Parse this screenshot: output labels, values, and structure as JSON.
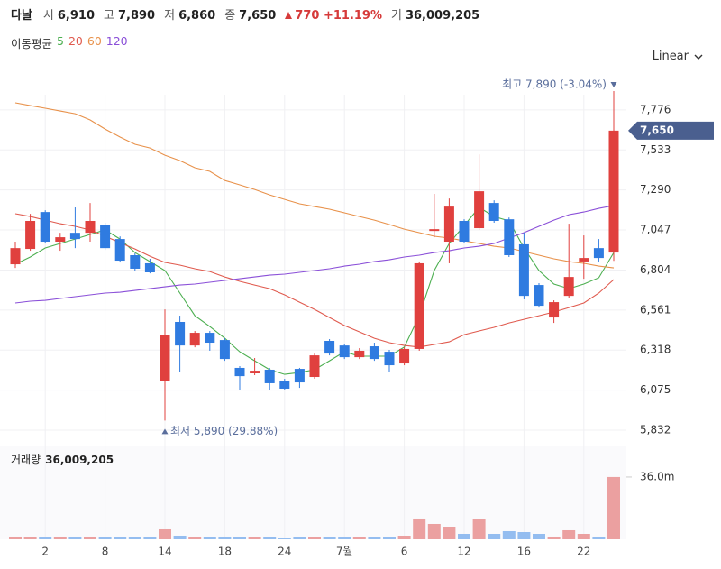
{
  "header": {
    "name": "다날",
    "items": [
      {
        "label": "시",
        "value": "6,910"
      },
      {
        "label": "고",
        "value": "7,890"
      },
      {
        "label": "저",
        "value": "6,860"
      },
      {
        "label": "종",
        "value": "7,650"
      }
    ],
    "change": "770 +11.19%",
    "volume_label": "거",
    "volume_value": "36,009,205"
  },
  "scale_menu": "Linear",
  "chart_data": {
    "type": "candlestick",
    "legend_title": "이동평균",
    "categories": [
      null,
      null,
      "2",
      null,
      null,
      null,
      "8",
      null,
      null,
      null,
      "14",
      null,
      null,
      null,
      "18",
      null,
      null,
      null,
      "24",
      null,
      null,
      null,
      "7월",
      null,
      null,
      null,
      "6",
      null,
      null,
      null,
      "12",
      null,
      null,
      null,
      "16",
      null,
      null,
      null,
      "22",
      null,
      null
    ],
    "open": [
      6839,
      6932,
      7156,
      6976,
      7030,
      7030,
      7080,
      6992,
      6894,
      6845,
      6128,
      6489,
      6346,
      6423,
      6379,
      6210,
      6177,
      6199,
      6133,
      6204,
      6155,
      6374,
      6346,
      6275,
      6341,
      6308,
      6237,
      6325,
      7041,
      6976,
      7102,
      7058,
      7211,
      7112,
      6960,
      6713,
      6516,
      6647,
      6856,
      6937,
      6910
    ],
    "high": [
      6976,
      7145,
      7167,
      7030,
      7184,
      7211,
      7091,
      7008,
      6905,
      6872,
      6565,
      6527,
      6434,
      6434,
      6390,
      6221,
      6270,
      6210,
      6144,
      6210,
      6297,
      6385,
      6352,
      6330,
      6363,
      6319,
      6335,
      6856,
      7266,
      7238,
      7112,
      7506,
      7227,
      7123,
      7030,
      6724,
      6620,
      7085,
      7014,
      6992,
      7890
    ],
    "low": [
      6817,
      6921,
      6965,
      6921,
      6937,
      6976,
      6926,
      6850,
      6801,
      6784,
      5890,
      6188,
      6335,
      6314,
      6253,
      6073,
      6166,
      6073,
      6073,
      6089,
      6144,
      6286,
      6264,
      6264,
      6253,
      6188,
      6226,
      6314,
      7003,
      6845,
      6965,
      7047,
      7091,
      6883,
      6626,
      6576,
      6483,
      6636,
      6751,
      6856,
      6860
    ],
    "close": [
      6937,
      7102,
      6976,
      7003,
      6992,
      7102,
      6937,
      6861,
      6812,
      6790,
      6407,
      6346,
      6423,
      6363,
      6264,
      6160,
      6193,
      6117,
      6084,
      6122,
      6286,
      6297,
      6275,
      6314,
      6264,
      6226,
      6325,
      6845,
      7052,
      7189,
      6976,
      7282,
      7102,
      6894,
      6647,
      6587,
      6609,
      6762,
      6877,
      6877,
      7650
    ],
    "up_color": "#e0403e",
    "down_color": "#2f7be0",
    "ma": [
      {
        "name": "5",
        "color": "#4caf50",
        "values": [
          6839,
          6883,
          6938,
          6965,
          6992,
          7020,
          7047,
          6992,
          6910,
          6855,
          6801,
          6664,
          6527,
          6461,
          6390,
          6308,
          6253,
          6199,
          6171,
          6182,
          6199,
          6253,
          6308,
          6281,
          6281,
          6281,
          6336,
          6527,
          6801,
          6965,
          7074,
          7184,
          7129,
          7102,
          6938,
          6801,
          6719,
          6691,
          6719,
          6757,
          6910
        ]
      },
      {
        "name": "20",
        "color": "#e05a4e",
        "values": [
          7146,
          7129,
          7107,
          7085,
          7069,
          7047,
          7009,
          6970,
          6932,
          6888,
          6850,
          6834,
          6812,
          6795,
          6762,
          6735,
          6713,
          6691,
          6653,
          6609,
          6565,
          6516,
          6467,
          6429,
          6390,
          6363,
          6346,
          6336,
          6352,
          6368,
          6412,
          6434,
          6456,
          6483,
          6505,
          6527,
          6549,
          6576,
          6604,
          6664,
          6746
        ]
      },
      {
        "name": "60",
        "color": "#e8914a",
        "values": [
          7819,
          7802,
          7786,
          7769,
          7753,
          7715,
          7660,
          7611,
          7567,
          7545,
          7501,
          7468,
          7425,
          7403,
          7348,
          7321,
          7293,
          7260,
          7233,
          7206,
          7189,
          7173,
          7151,
          7129,
          7107,
          7080,
          7052,
          7031,
          7009,
          6998,
          6981,
          6965,
          6948,
          6938,
          6916,
          6894,
          6872,
          6855,
          6845,
          6828,
          6817
        ]
      },
      {
        "name": "120",
        "color": "#8a4fd8",
        "values": [
          6604,
          6615,
          6620,
          6631,
          6642,
          6653,
          6664,
          6669,
          6680,
          6691,
          6702,
          6713,
          6719,
          6730,
          6741,
          6751,
          6762,
          6773,
          6779,
          6790,
          6801,
          6812,
          6828,
          6839,
          6855,
          6866,
          6883,
          6894,
          6910,
          6921,
          6938,
          6948,
          6965,
          6998,
          7031,
          7069,
          7107,
          7140,
          7156,
          7178,
          7195
        ]
      }
    ],
    "ylim": [
      5761,
      7923
    ],
    "yticks": [
      {
        "value": 5832,
        "label": "5,832"
      },
      {
        "value": 6075,
        "label": "6,075"
      },
      {
        "value": 6318,
        "label": "6,318"
      },
      {
        "value": 6561,
        "label": "6,561"
      },
      {
        "value": 6804,
        "label": "6,804"
      },
      {
        "value": 7047,
        "label": "7,047"
      },
      {
        "value": 7290,
        "label": "7,290"
      },
      {
        "value": 7533,
        "label": "7,533"
      },
      {
        "value": 7776,
        "label": "7,776"
      }
    ],
    "grid": true,
    "high_label": "최고 7,890 (-3.04%)",
    "low_label": "최저 5,890 (29.88%)",
    "last_label": "7,650",
    "volume": {
      "label": "거래량",
      "value_label": "36,009,205",
      "values": [
        1570000,
        1040000,
        1040000,
        1570000,
        1570000,
        1570000,
        1040000,
        1040000,
        1040000,
        1040000,
        5740000,
        2090000,
        1040000,
        1040000,
        1570000,
        1040000,
        1040000,
        1040000,
        520000,
        1040000,
        1040000,
        1040000,
        1040000,
        1040000,
        1040000,
        1040000,
        2090000,
        12000000,
        8870000,
        7300000,
        3130000,
        11480000,
        3130000,
        4700000,
        4170000,
        3130000,
        1570000,
        5220000,
        3130000,
        1570000,
        36009205
      ],
      "up_color": "#eba0a0",
      "down_color": "#94bdf0",
      "ylim": [
        0,
        53700000
      ],
      "yticks": [
        {
          "value": 36000000,
          "label": "36.0m"
        }
      ]
    }
  }
}
